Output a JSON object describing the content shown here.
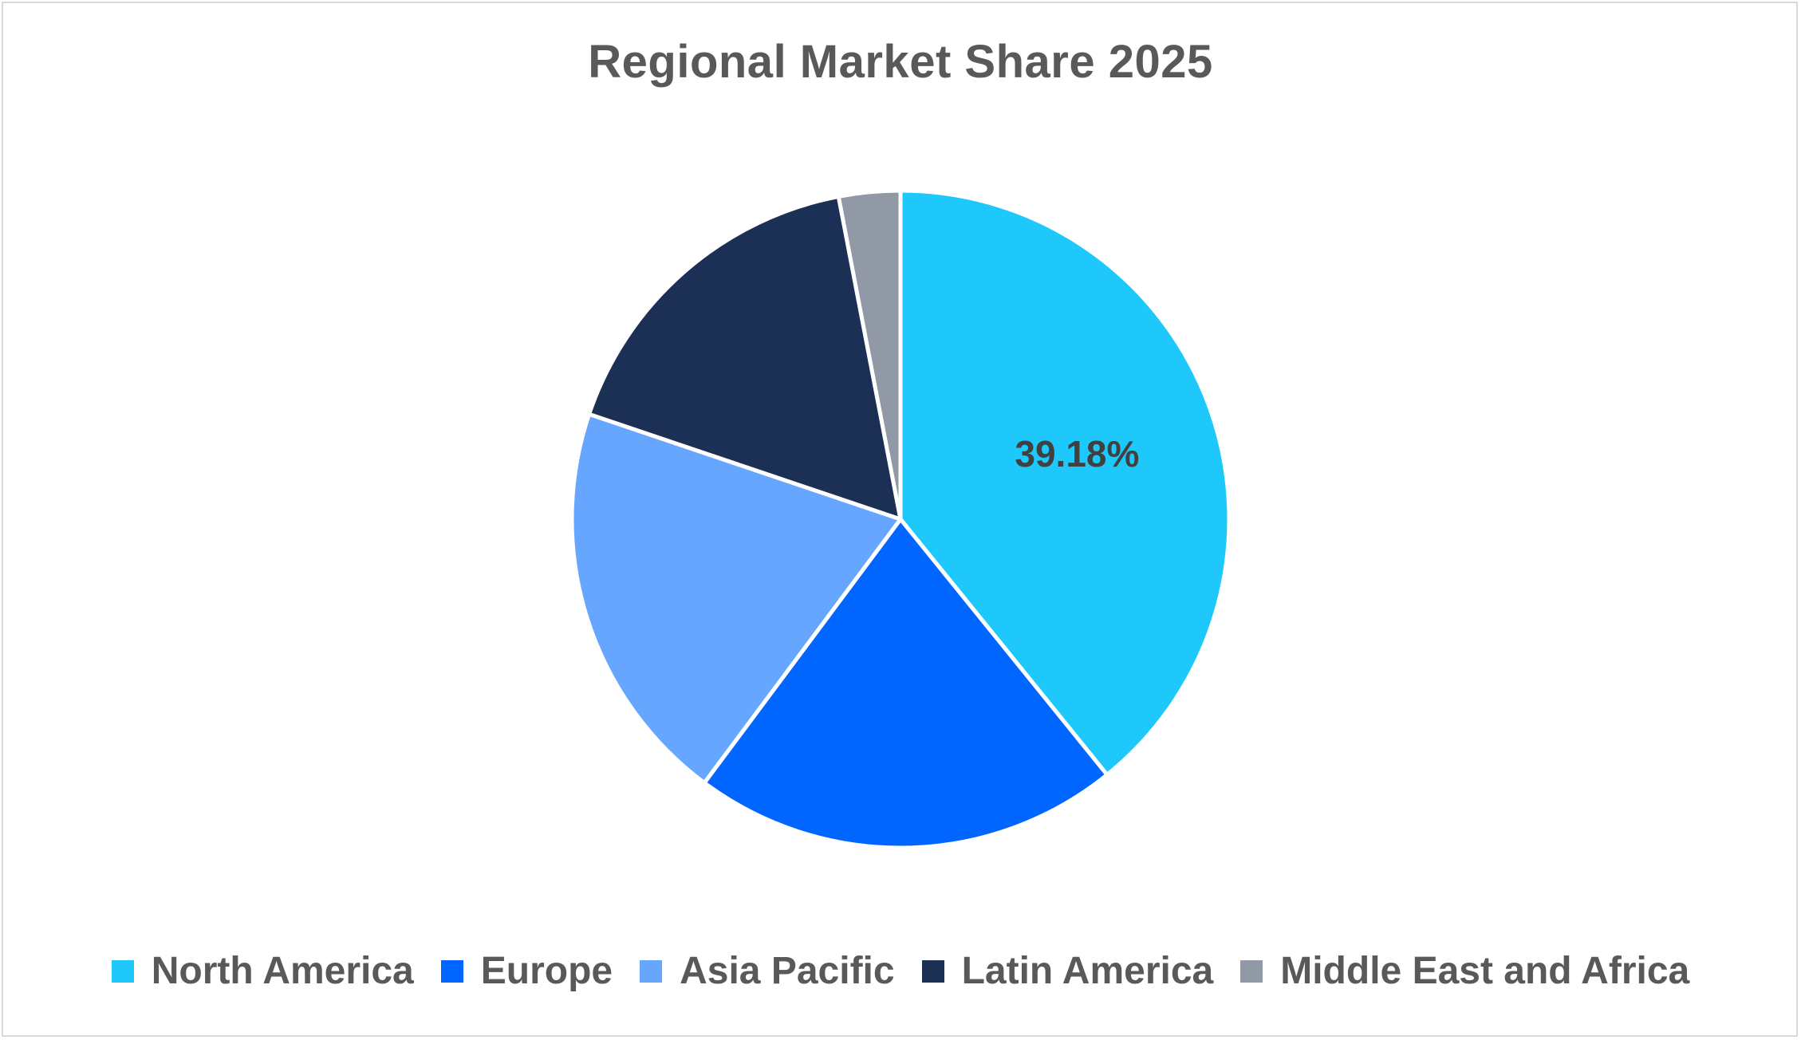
{
  "chart_data": {
    "type": "pie",
    "title": "Regional Market Share 2025",
    "categories": [
      "North America",
      "Europe",
      "Asia Pacific",
      "Latin America",
      "Middle East and Africa"
    ],
    "values": [
      39.18,
      21.0,
      20.0,
      16.8,
      3.02
    ],
    "colors": [
      "#1ec8fa",
      "#0066ff",
      "#66a6ff",
      "#1c3055",
      "#9199a6"
    ],
    "data_labels": [
      {
        "index": 0,
        "text": "39.18%"
      }
    ],
    "legend_position": "bottom",
    "start_angle_deg": 0,
    "direction": "clockwise"
  }
}
